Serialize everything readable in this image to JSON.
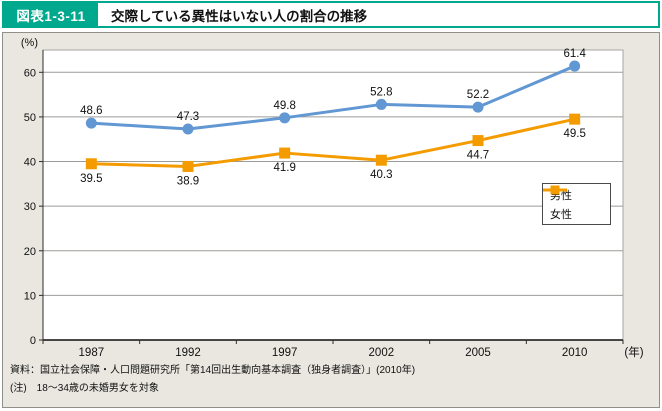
{
  "header": {
    "badge": "図表1-3-11",
    "title": "交際している異性はいない人の割合の推移"
  },
  "chart_data": {
    "type": "line",
    "title": "交際している異性はいない人の割合の推移",
    "categories": [
      "1987",
      "1992",
      "1997",
      "2002",
      "2005",
      "2010"
    ],
    "series": [
      {
        "name": "男性",
        "values": [
          48.6,
          47.3,
          49.8,
          52.8,
          52.2,
          61.4
        ],
        "color": "#6197d3",
        "marker": "circle",
        "label_position": "above"
      },
      {
        "name": "女性",
        "values": [
          39.5,
          38.9,
          41.9,
          40.3,
          44.7,
          49.5
        ],
        "color": "#f49b00",
        "marker": "square",
        "label_position": "below"
      }
    ],
    "unit_label": "(%)",
    "x_axis_suffix": "(年)",
    "y_ticks": [
      0,
      10,
      20,
      30,
      40,
      50,
      60
    ],
    "ylim": [
      0,
      65
    ],
    "grid": true,
    "legend_position": "middle-right"
  },
  "footer": {
    "source": "資料：国立社会保障・人口問題研究所「第14回出生動向基本調査（独身者調査）」(2010年)",
    "note": "(注)　18～34歳の未婚男女を対象"
  },
  "colors": {
    "accent_teal": "#00a88e",
    "male_blue": "#6197d3",
    "female_orange": "#f49b00",
    "panel_bg": "#e9e7e0",
    "gridline": "#9b9b97",
    "axis": "#2e2e2e"
  }
}
